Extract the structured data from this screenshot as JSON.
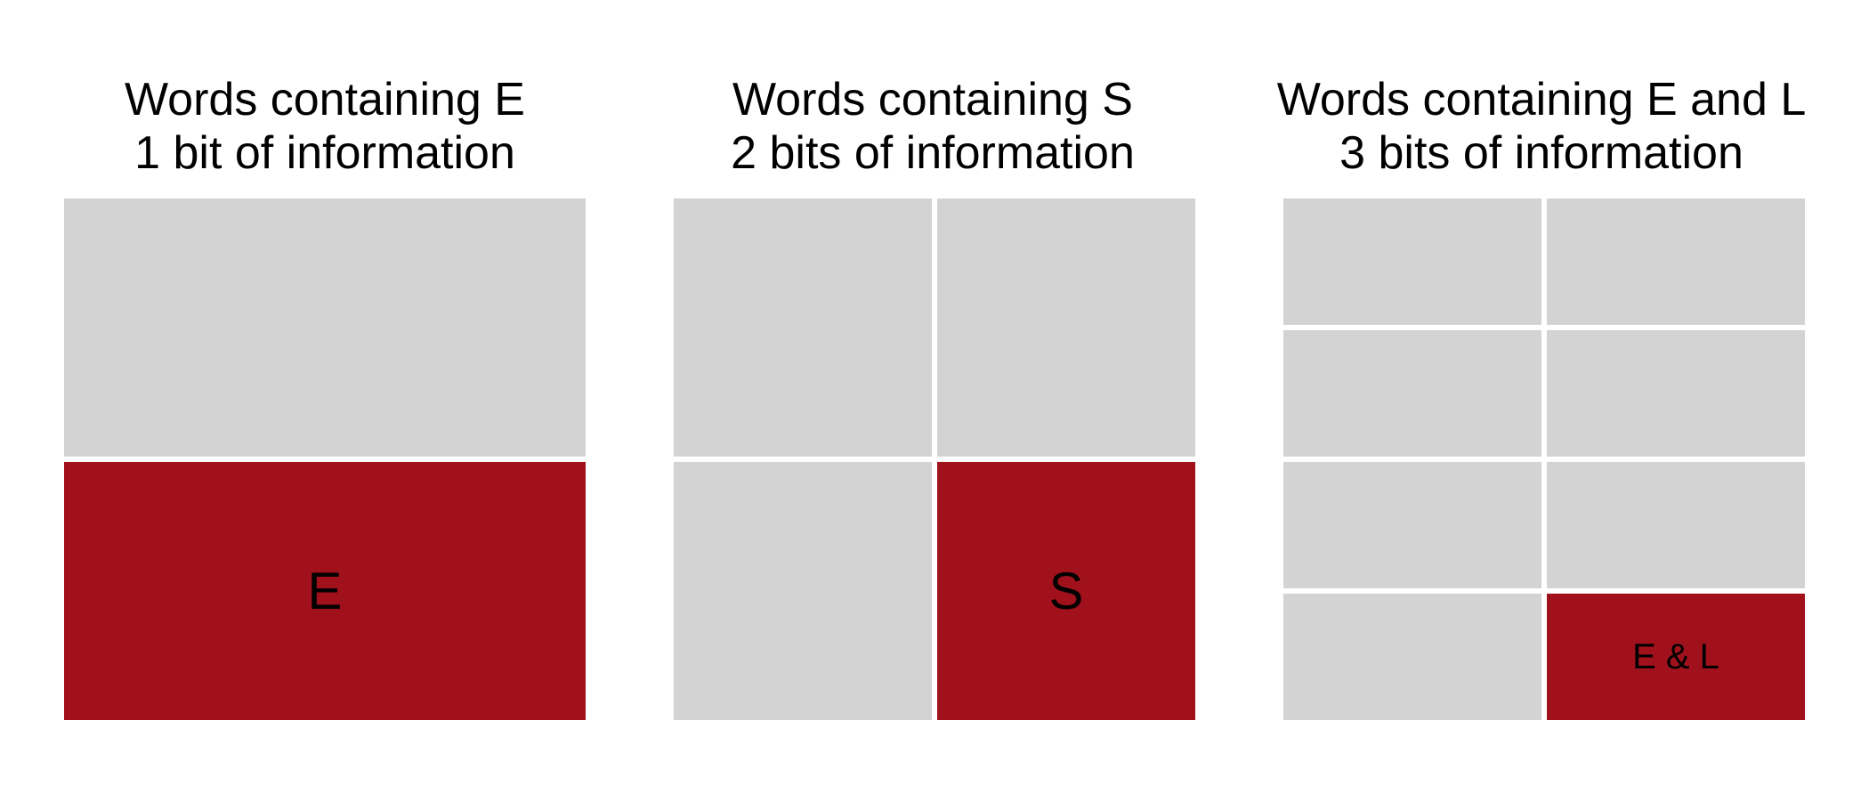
{
  "colors": {
    "background": "#ffffff",
    "empty_cell": "#d3d3d3",
    "highlight_cell": "#a0111c",
    "text": "#000000"
  },
  "panels": [
    {
      "title_line1": "Words containing E",
      "title_line2": "1 bit of information",
      "rows": 2,
      "cols": 1,
      "highlight_label": "E"
    },
    {
      "title_line1": "Words containing S",
      "title_line2": "2 bits of information",
      "rows": 2,
      "cols": 2,
      "highlight_label": "S"
    },
    {
      "title_line1": "Words containing E and L",
      "title_line2": "3 bits of information",
      "rows": 4,
      "cols": 2,
      "highlight_label": "E & L"
    }
  ]
}
